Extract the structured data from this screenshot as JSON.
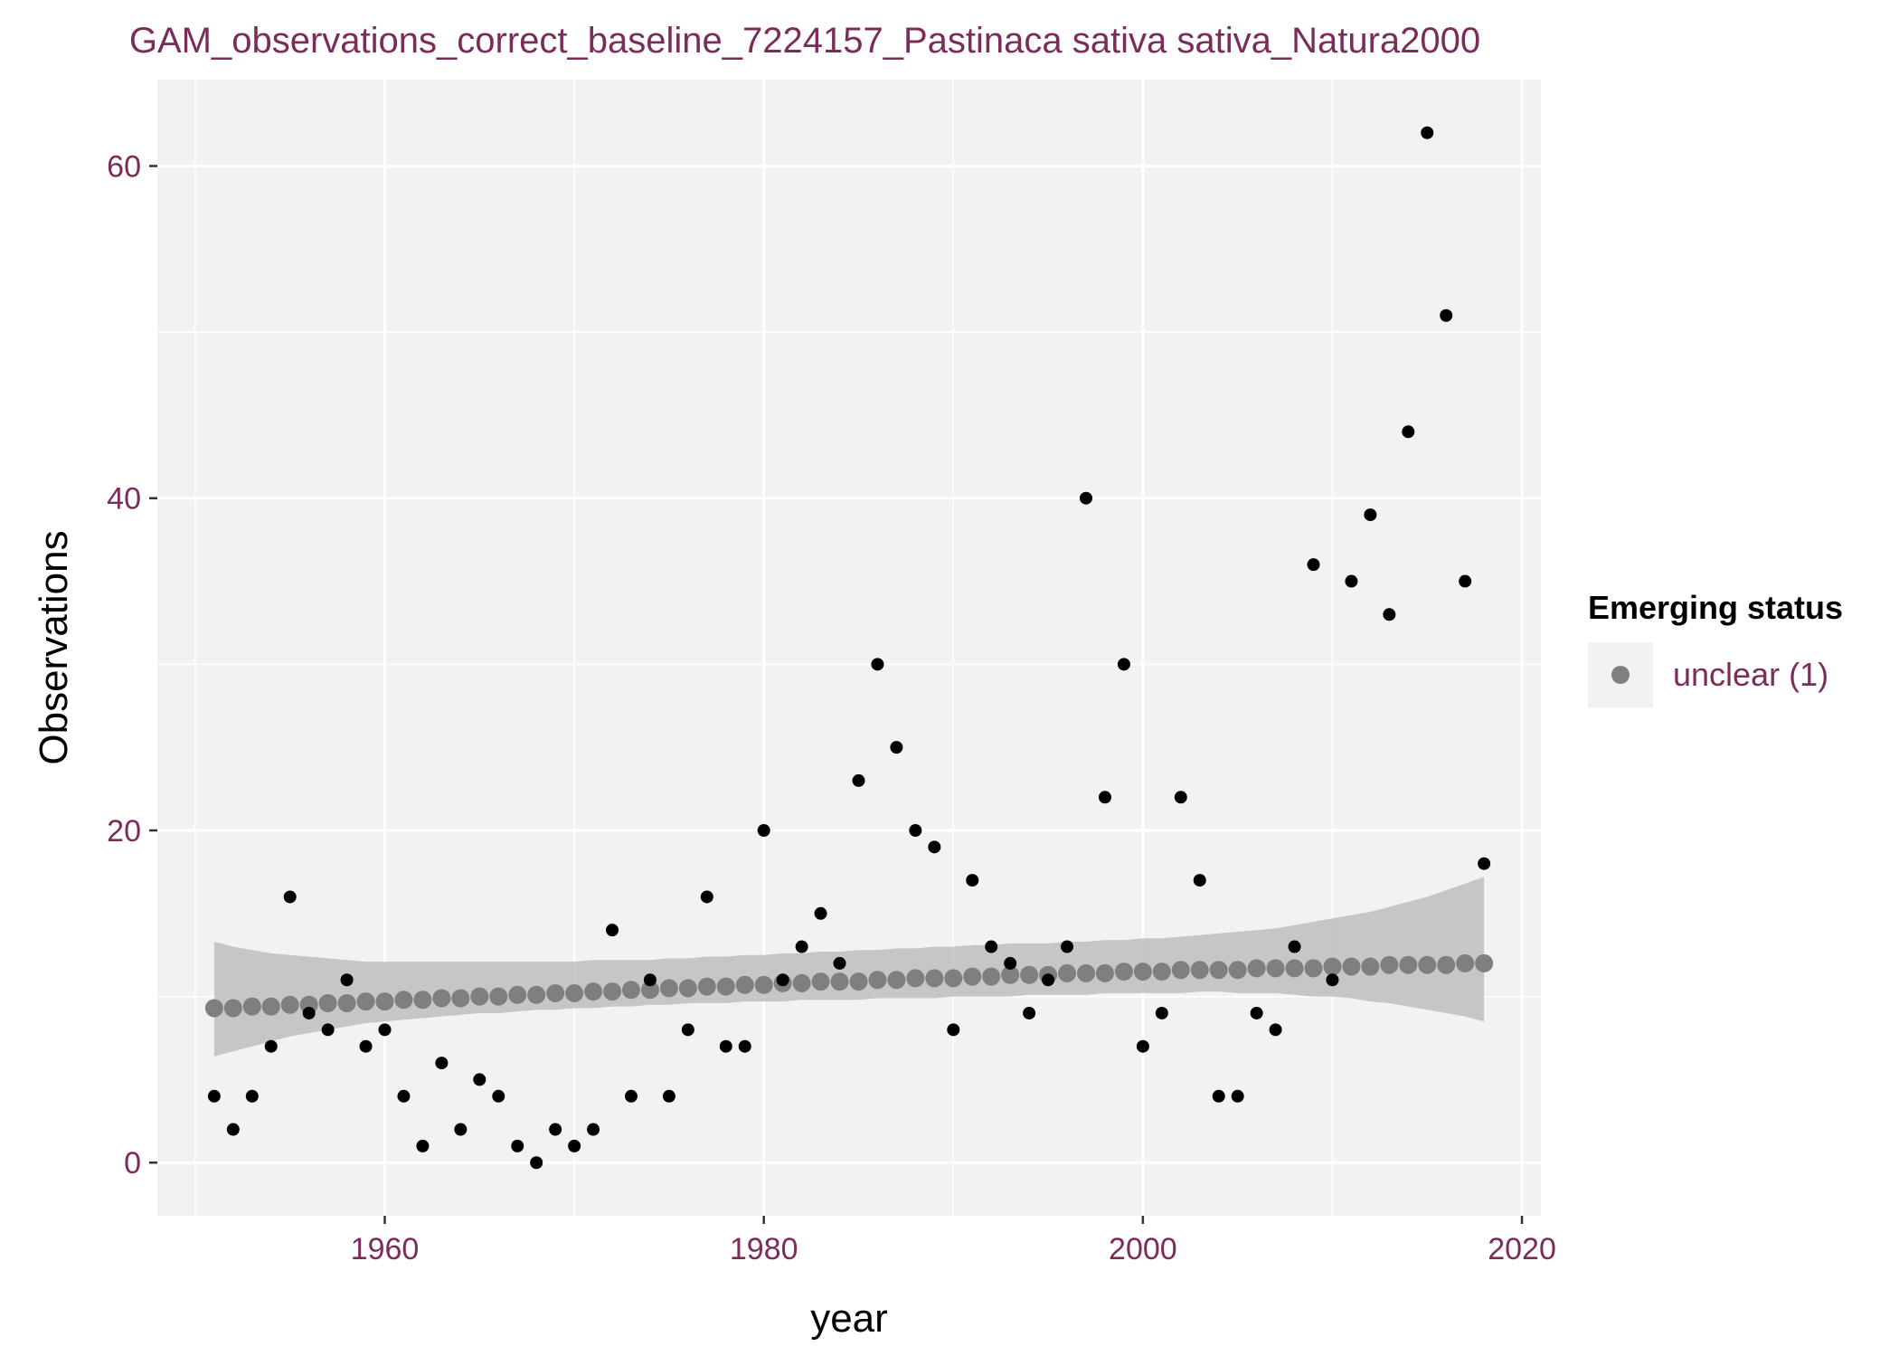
{
  "chart_data": {
    "type": "scatter",
    "title": "GAM_observations_correct_baseline_7224157_Pastinaca sativa sativa_Natura2000",
    "xlabel": "year",
    "ylabel": "Observations",
    "xlim": [
      1948,
      2021
    ],
    "ylim": [
      -3.2,
      65.2
    ],
    "xticks": [
      1960,
      1980,
      2000,
      2020
    ],
    "yticks": [
      0,
      20,
      40,
      60
    ],
    "grid": true,
    "legend": {
      "title": "Emerging status",
      "position": "right",
      "entries": [
        {
          "label": "unclear (1)",
          "color": "#7f7f7f"
        }
      ]
    },
    "colors": {
      "panel": "#f2f2f2",
      "grid": "#ffffff",
      "observed_points": "#000000",
      "fit_points": "#7f7f7f",
      "ribbon": "#bebebe"
    },
    "series": [
      {
        "kind": "observed",
        "x": [
          1951,
          1952,
          1953,
          1954,
          1955,
          1956,
          1957,
          1958,
          1959,
          1960,
          1961,
          1962,
          1963,
          1964,
          1965,
          1966,
          1967,
          1968,
          1969,
          1970,
          1971,
          1972,
          1973,
          1974,
          1975,
          1976,
          1977,
          1978,
          1979,
          1980,
          1981,
          1982,
          1983,
          1984,
          1985,
          1986,
          1987,
          1988,
          1989,
          1990,
          1991,
          1992,
          1993,
          1994,
          1995,
          1996,
          1997,
          1998,
          1999,
          2000,
          2001,
          2002,
          2003,
          2004,
          2005,
          2006,
          2007,
          2008,
          2009,
          2010,
          2011,
          2012,
          2013,
          2014,
          2015,
          2016,
          2017,
          2018
        ],
        "y": [
          4,
          2,
          4,
          7,
          16,
          9,
          8,
          11,
          7,
          8,
          4,
          1,
          6,
          2,
          5,
          4,
          1,
          0,
          2,
          1,
          2,
          14,
          4,
          11,
          4,
          8,
          16,
          7,
          7,
          20,
          11,
          13,
          15,
          12,
          23,
          30,
          25,
          20,
          19,
          8,
          17,
          13,
          12,
          9,
          11,
          13,
          40,
          22,
          30,
          7,
          9,
          22,
          17,
          4,
          4,
          9,
          8,
          13,
          36,
          11,
          35,
          39,
          33,
          44,
          62,
          51,
          35,
          18
        ]
      },
      {
        "kind": "fitted",
        "name": "unclear (1)",
        "x": [
          1951,
          1952,
          1953,
          1954,
          1955,
          1956,
          1957,
          1958,
          1959,
          1960,
          1961,
          1962,
          1963,
          1964,
          1965,
          1966,
          1967,
          1968,
          1969,
          1970,
          1971,
          1972,
          1973,
          1974,
          1975,
          1976,
          1977,
          1978,
          1979,
          1980,
          1981,
          1982,
          1983,
          1984,
          1985,
          1986,
          1987,
          1988,
          1989,
          1990,
          1991,
          1992,
          1993,
          1994,
          1995,
          1996,
          1997,
          1998,
          1999,
          2000,
          2001,
          2002,
          2003,
          2004,
          2005,
          2006,
          2007,
          2008,
          2009,
          2010,
          2011,
          2012,
          2013,
          2014,
          2015,
          2016,
          2017,
          2018
        ],
        "y": [
          9.3,
          9.3,
          9.4,
          9.4,
          9.5,
          9.5,
          9.6,
          9.6,
          9.7,
          9.7,
          9.8,
          9.8,
          9.9,
          9.9,
          10.0,
          10.0,
          10.1,
          10.1,
          10.2,
          10.2,
          10.3,
          10.3,
          10.4,
          10.4,
          10.5,
          10.5,
          10.6,
          10.6,
          10.7,
          10.7,
          10.8,
          10.8,
          10.9,
          10.9,
          10.9,
          11.0,
          11.0,
          11.1,
          11.1,
          11.1,
          11.2,
          11.2,
          11.3,
          11.3,
          11.3,
          11.4,
          11.4,
          11.4,
          11.5,
          11.5,
          11.5,
          11.6,
          11.6,
          11.6,
          11.6,
          11.7,
          11.7,
          11.7,
          11.7,
          11.8,
          11.8,
          11.8,
          11.9,
          11.9,
          11.9,
          11.9,
          12.0,
          12.0
        ],
        "lower": [
          6.4,
          6.7,
          7.0,
          7.3,
          7.6,
          7.8,
          8.0,
          8.2,
          8.4,
          8.5,
          8.6,
          8.7,
          8.8,
          8.9,
          9.0,
          9.0,
          9.1,
          9.2,
          9.2,
          9.3,
          9.3,
          9.4,
          9.4,
          9.5,
          9.5,
          9.6,
          9.6,
          9.6,
          9.7,
          9.7,
          9.7,
          9.8,
          9.8,
          9.8,
          9.8,
          9.9,
          9.9,
          9.9,
          9.9,
          10.0,
          10.0,
          10.0,
          10.0,
          10.1,
          10.1,
          10.1,
          10.1,
          10.2,
          10.2,
          10.2,
          10.2,
          10.2,
          10.3,
          10.3,
          10.2,
          10.2,
          10.2,
          10.1,
          10.0,
          10.0,
          9.9,
          9.7,
          9.6,
          9.4,
          9.2,
          9.0,
          8.8,
          8.5
        ],
        "upper": [
          13.3,
          13.0,
          12.8,
          12.6,
          12.5,
          12.4,
          12.3,
          12.2,
          12.1,
          12.1,
          12.1,
          12.1,
          12.1,
          12.1,
          12.1,
          12.1,
          12.1,
          12.1,
          12.1,
          12.1,
          12.2,
          12.2,
          12.2,
          12.2,
          12.3,
          12.3,
          12.4,
          12.4,
          12.5,
          12.5,
          12.6,
          12.6,
          12.7,
          12.7,
          12.8,
          12.8,
          12.9,
          12.9,
          13.0,
          13.0,
          13.1,
          13.1,
          13.2,
          13.2,
          13.2,
          13.3,
          13.3,
          13.4,
          13.4,
          13.5,
          13.5,
          13.6,
          13.7,
          13.8,
          13.9,
          14.0,
          14.1,
          14.3,
          14.5,
          14.7,
          14.9,
          15.1,
          15.4,
          15.7,
          16.0,
          16.4,
          16.8,
          17.2
        ]
      }
    ]
  }
}
